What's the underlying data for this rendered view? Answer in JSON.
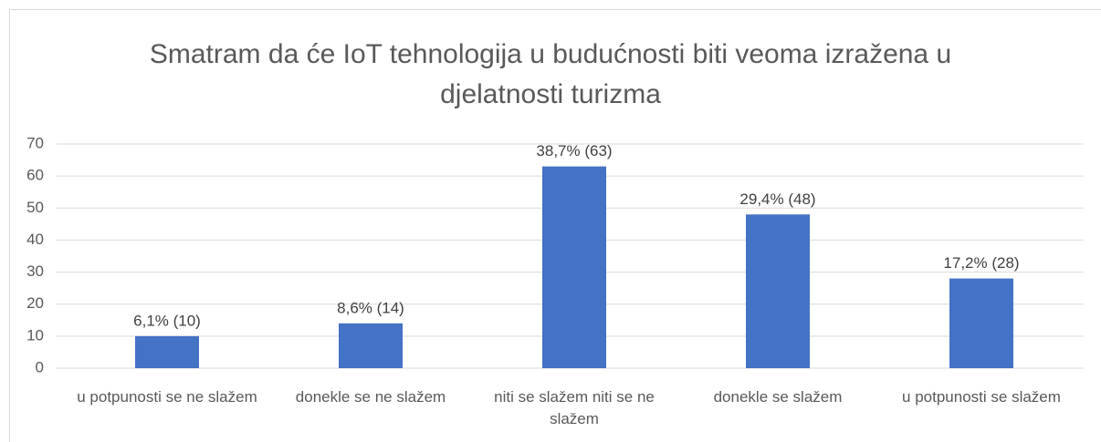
{
  "chart_data": {
    "type": "bar",
    "title": "Smatram da će IoT tehnologija u budućnosti biti veoma izražena u djelatnosti turizma",
    "categories": [
      "u potpunosti se ne slažem",
      "donekle se ne slažem",
      "niti se slažem niti se ne slažem",
      "donekle se slažem",
      "u potpunosti se slažem"
    ],
    "values": [
      10,
      14,
      63,
      48,
      28
    ],
    "value_labels": [
      "6,1% (10)",
      "8,6% (14)",
      "38,7% (63)",
      "29,4% (48)",
      "17,2% (28)"
    ],
    "color": "#4472c4",
    "ylim": [
      0,
      70
    ],
    "yticks": [
      0,
      10,
      20,
      30,
      40,
      50,
      60,
      70
    ],
    "grid": true
  }
}
